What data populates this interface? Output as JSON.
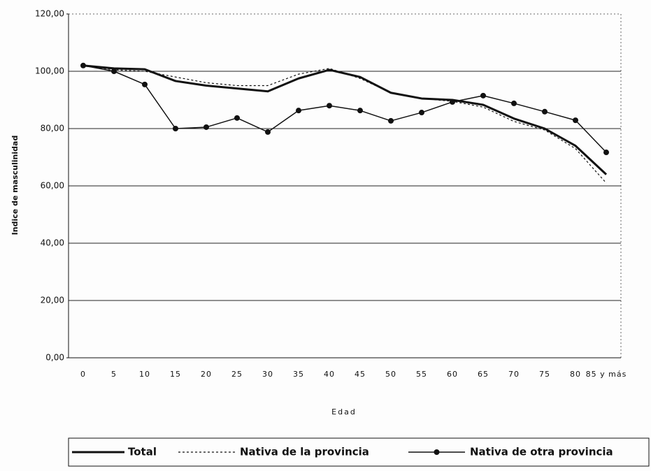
{
  "chart_data": {
    "type": "line",
    "y_label": "Indice de masculinidad",
    "x_label": "Edad",
    "categories": [
      "0",
      "5",
      "10",
      "15",
      "20",
      "25",
      "30",
      "35",
      "40",
      "45",
      "50",
      "55",
      "60",
      "65",
      "70",
      "75",
      "80",
      "85 y más"
    ],
    "series": [
      {
        "name": "Total",
        "color": "#111111",
        "style": "solid",
        "marker": false,
        "values": [
          102,
          101,
          100.7,
          96.6,
          95,
          94,
          93,
          97.5,
          100.5,
          98,
          92.5,
          90.5,
          90,
          88.3,
          83.5,
          80,
          74,
          64
        ]
      },
      {
        "name": "Nativa de la provincia",
        "color": "#111111",
        "style": "dashed",
        "marker": false,
        "values": [
          102,
          100.5,
          100,
          98,
          96,
          95,
          95,
          99,
          101,
          97.5,
          92.5,
          90.5,
          89.5,
          87.5,
          82.5,
          79.5,
          73,
          61
        ]
      },
      {
        "name": "Nativa de otra provincia",
        "color": "#111111",
        "style": "solid",
        "marker": true,
        "values": [
          102,
          100,
          95.4,
          80,
          80.5,
          83.7,
          78.8,
          86.3,
          88,
          86.3,
          82.7,
          85.6,
          89.3,
          91.5,
          88.8,
          85.9,
          82.9,
          71.7
        ]
      }
    ],
    "ylim": [
      0,
      120
    ],
    "yticks": [
      {
        "value": 0,
        "label": "0,00"
      },
      {
        "value": 20,
        "label": "20,00"
      },
      {
        "value": 40,
        "label": "40,00"
      },
      {
        "value": 60,
        "label": "60,00"
      },
      {
        "value": 80,
        "label": "80,00"
      },
      {
        "value": 100,
        "label": "100,00"
      },
      {
        "value": 120,
        "label": "120,00"
      }
    ],
    "grid": true,
    "legend": "bottom"
  }
}
